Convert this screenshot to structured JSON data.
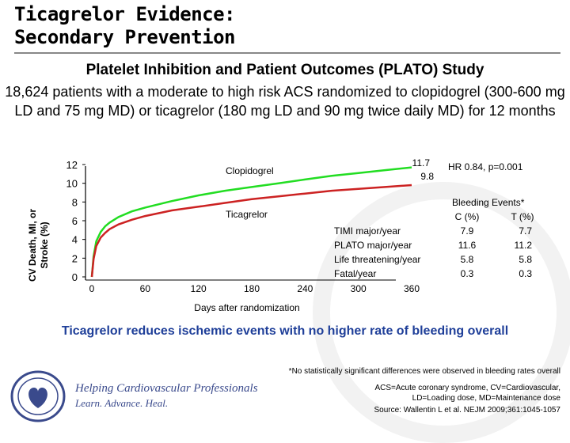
{
  "header": {
    "title_line1": "Ticagrelor Evidence:",
    "title_line2": "Secondary Prevention"
  },
  "subtitle": "Platelet Inhibition and Patient Outcomes (PLATO) Study",
  "description": "18,624 patients with a moderate to high risk ACS randomized to clopidogrel (300-600 mg LD and 75 mg MD) or ticagrelor (180 mg LD and 90 mg twice daily MD) for 12 months",
  "chart_data": {
    "type": "line",
    "title": "",
    "xlabel": "Days after randomization",
    "ylabel_line1": "CV Death, MI, or",
    "ylabel_line2": "Stroke (%)",
    "xlim": [
      0,
      360
    ],
    "ylim": [
      0,
      12
    ],
    "xticks": [
      "0",
      "60",
      "120",
      "180",
      "240",
      "300",
      "360"
    ],
    "yticks": [
      "0",
      "2",
      "4",
      "6",
      "8",
      "10",
      "12"
    ],
    "x": [
      0,
      2,
      5,
      10,
      15,
      20,
      30,
      45,
      60,
      90,
      120,
      150,
      180,
      210,
      240,
      270,
      300,
      330,
      360
    ],
    "series": [
      {
        "name": "Clopidogrel",
        "color": "#22dd22",
        "values": [
          0,
          2.2,
          3.8,
          4.8,
          5.4,
          5.8,
          6.4,
          7.0,
          7.4,
          8.1,
          8.7,
          9.2,
          9.6,
          10.0,
          10.4,
          10.8,
          11.1,
          11.4,
          11.7
        ]
      },
      {
        "name": "Ticagrelor",
        "color": "#cc2222",
        "values": [
          0,
          1.9,
          3.3,
          4.2,
          4.7,
          5.1,
          5.6,
          6.1,
          6.5,
          7.1,
          7.5,
          7.9,
          8.3,
          8.6,
          8.9,
          9.2,
          9.4,
          9.6,
          9.8
        ]
      }
    ],
    "end_labels": {
      "clopidogrel": "11.7",
      "ticagrelor": "9.8"
    },
    "hr_text": "HR 0.84, p=0.001"
  },
  "bleeding": {
    "title": "Bleeding Events*",
    "col_c": "C (%)",
    "col_t": "T (%)",
    "rows": [
      {
        "label": "TIMI major/year",
        "c": "7.9",
        "t": "7.7"
      },
      {
        "label": "PLATO major/year",
        "c": "11.6",
        "t": "11.2"
      },
      {
        "label": "Life threatening/year",
        "c": "5.8",
        "t": "5.8"
      },
      {
        "label": "Fatal/year",
        "c": "0.3",
        "t": "0.3"
      }
    ]
  },
  "conclusion": "Ticagrelor reduces ischemic events with no higher rate of bleeding overall",
  "footnote": "*No statistically significant differences were observed in bleeding rates overall",
  "abbreviations_line1": "ACS=Acute coronary syndrome, CV=Cardiovascular,",
  "abbreviations_line2": "LD=Loading dose, MD=Maintenance dose",
  "source": "Source: Wallentin L et al. NEJM 2009;361:1045-1057",
  "logo": {
    "line1": "Helping Cardiovascular Professionals",
    "line2": "Learn. Advance. Heal."
  }
}
